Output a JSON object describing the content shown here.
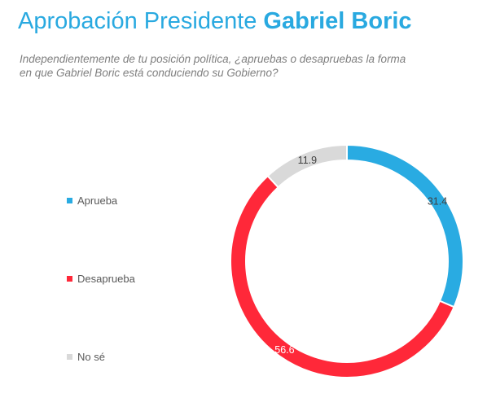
{
  "header": {
    "title_main": "Aprobación Presidente",
    "title_name": "Gabriel Boric",
    "question": "Independientemente de tu posición política, ¿apruebas o desapruebas la forma en que Gabriel Boric está conduciendo su Gobierno?"
  },
  "chart_data": {
    "type": "pie",
    "donut": true,
    "title": "",
    "legend_position": "left",
    "categories": [
      "Aprueba",
      "Desaprueba",
      "No sé"
    ],
    "values": [
      31.4,
      56.6,
      11.9
    ],
    "labels": [
      "31.4",
      "56.6",
      "11.9"
    ],
    "colors": [
      "#29abe2",
      "#ff2839",
      "#d9d9d9"
    ],
    "label_colors": [
      "#404040",
      "#ffffff",
      "#404040"
    ]
  }
}
